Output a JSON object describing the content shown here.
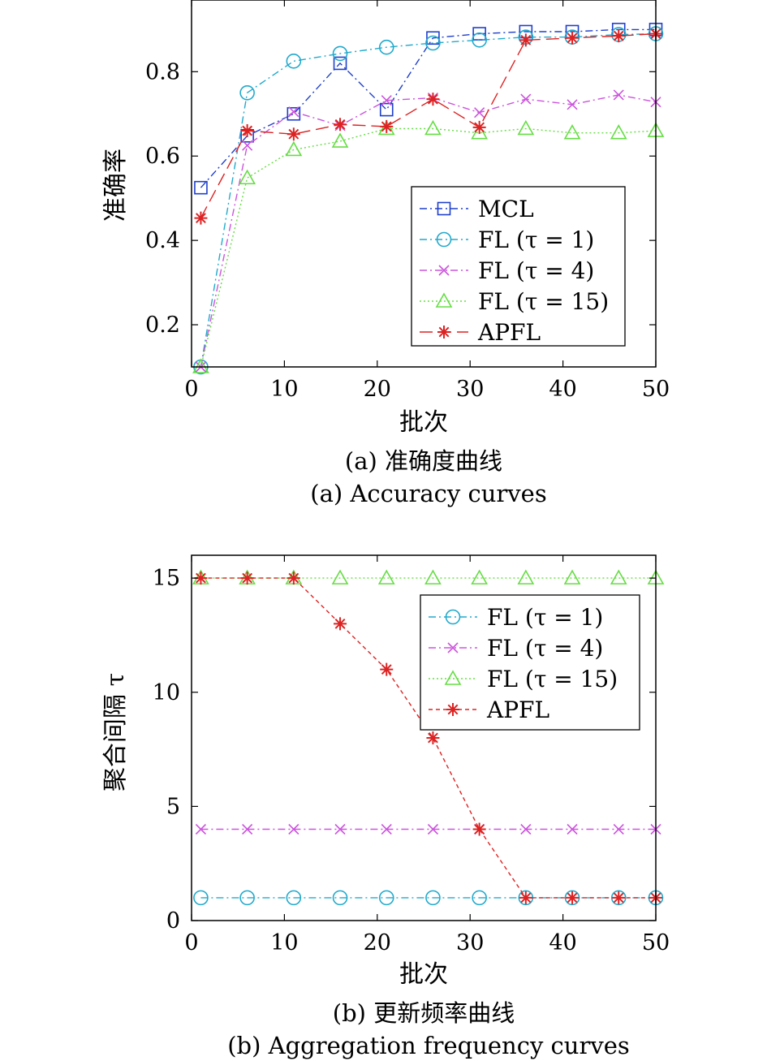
{
  "chart_data": [
    {
      "type": "line",
      "xlabel": "批次",
      "ylabel": "准确率",
      "caption_cn": "(a) 准确度曲线",
      "caption_en": "(a) Accuracy curves",
      "xlim": [
        0,
        50
      ],
      "ylim": [
        0.1,
        0.97
      ],
      "xticks": [
        0,
        10,
        20,
        30,
        40,
        50
      ],
      "yticks": [
        0.2,
        0.4,
        0.6,
        0.8
      ],
      "xtick_labels": [
        "0",
        "10",
        "20",
        "30",
        "40",
        "50"
      ],
      "ytick_labels": [
        "0.2",
        "0.4",
        "0.6",
        "0.8"
      ],
      "grid": false,
      "legend_position": "lower-right",
      "x": [
        1,
        6,
        11,
        16,
        21,
        26,
        31,
        36,
        41,
        46,
        50
      ],
      "series": [
        {
          "name": "MCL",
          "color": "#1f3fcc",
          "marker": "square",
          "dash": "dash-dot",
          "values": [
            0.525,
            0.648,
            0.7,
            0.82,
            0.71,
            0.88,
            0.89,
            0.895,
            0.895,
            0.9,
            0.9
          ]
        },
        {
          "name": "FL (τ = 1)",
          "color": "#22aacc",
          "marker": "circle",
          "dash": "dash-dot",
          "values": [
            0.1,
            0.75,
            0.825,
            0.843,
            0.858,
            0.868,
            0.875,
            0.882,
            0.882,
            0.888,
            0.89
          ]
        },
        {
          "name": "FL (τ = 4)",
          "color": "#cc55dd",
          "marker": "x",
          "dash": "dash-dot",
          "values": [
            0.1,
            0.625,
            0.705,
            0.672,
            0.732,
            0.738,
            0.703,
            0.735,
            0.722,
            0.745,
            0.728
          ]
        },
        {
          "name": "FL (τ = 15)",
          "color": "#66dd44",
          "marker": "triangle",
          "dash": "dotted",
          "values": [
            0.1,
            0.548,
            0.615,
            0.635,
            0.665,
            0.665,
            0.655,
            0.665,
            0.655,
            0.655,
            0.66
          ]
        },
        {
          "name": "APFL",
          "color": "#dd2222",
          "marker": "star",
          "dash": "long-dash",
          "values": [
            0.453,
            0.66,
            0.652,
            0.675,
            0.67,
            0.735,
            0.668,
            0.875,
            0.88,
            0.885,
            0.89
          ]
        }
      ]
    },
    {
      "type": "line",
      "xlabel": "批次",
      "ylabel": "聚合间隔 τ",
      "caption_cn": "(b) 更新频率曲线",
      "caption_en": "(b) Aggregation frequency curves",
      "xlim": [
        0,
        50
      ],
      "ylim": [
        0,
        16
      ],
      "xticks": [
        0,
        10,
        20,
        30,
        40,
        50
      ],
      "yticks": [
        0,
        5,
        10,
        15
      ],
      "xtick_labels": [
        "0",
        "10",
        "20",
        "30",
        "40",
        "50"
      ],
      "ytick_labels": [
        "0",
        "5",
        "10",
        "15"
      ],
      "grid": false,
      "legend_position": "upper-right",
      "x": [
        1,
        6,
        11,
        16,
        21,
        26,
        31,
        36,
        41,
        46,
        50
      ],
      "series": [
        {
          "name": "FL (τ = 1)",
          "color": "#22aacc",
          "marker": "circle",
          "dash": "dash-dot",
          "values": [
            1,
            1,
            1,
            1,
            1,
            1,
            1,
            1,
            1,
            1,
            1
          ]
        },
        {
          "name": "FL (τ = 4)",
          "color": "#cc55dd",
          "marker": "x",
          "dash": "dash-dot",
          "values": [
            4,
            4,
            4,
            4,
            4,
            4,
            4,
            4,
            4,
            4,
            4
          ]
        },
        {
          "name": "FL (τ = 15)",
          "color": "#66dd44",
          "marker": "triangle",
          "dash": "dotted",
          "values": [
            15,
            15,
            15,
            15,
            15,
            15,
            15,
            15,
            15,
            15,
            15
          ]
        },
        {
          "name": "APFL",
          "color": "#dd2222",
          "marker": "star",
          "dash": "short-dash",
          "values": [
            15,
            15,
            15,
            13,
            11,
            8,
            4,
            1,
            1,
            1,
            1
          ]
        }
      ]
    }
  ]
}
